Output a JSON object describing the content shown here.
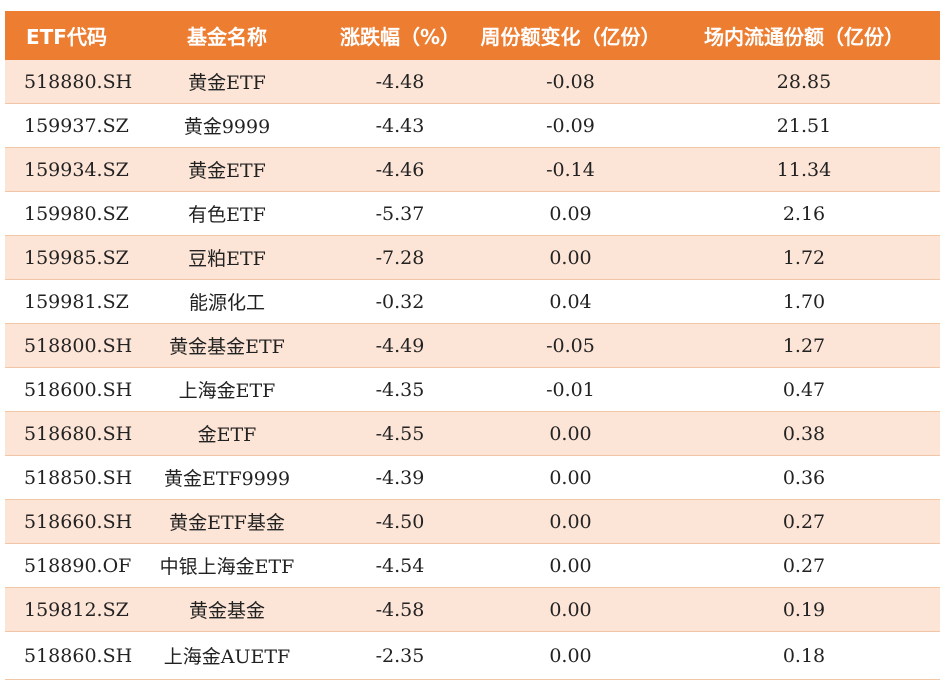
{
  "header": {
    "code": "ETF代码",
    "name": "基金名称",
    "change": "涨跌幅（%）",
    "weekly_shares": "周份额变化（亿份）",
    "float_shares": "场内流通份额（亿份）"
  },
  "rows": [
    {
      "code": "518880.SH",
      "name": "黄金ETF",
      "change": "-4.48",
      "weekly": "-0.08",
      "float": "28.85"
    },
    {
      "code": "159937.SZ",
      "name": "黄金9999",
      "change": "-4.43",
      "weekly": "-0.09",
      "float": "21.51"
    },
    {
      "code": "159934.SZ",
      "name": "黄金ETF",
      "change": "-4.46",
      "weekly": "-0.14",
      "float": "11.34"
    },
    {
      "code": "159980.SZ",
      "name": "有色ETF",
      "change": "-5.37",
      "weekly": "0.09",
      "float": "2.16"
    },
    {
      "code": "159985.SZ",
      "name": "豆粕ETF",
      "change": "-7.28",
      "weekly": "0.00",
      "float": "1.72"
    },
    {
      "code": "159981.SZ",
      "name": "能源化工",
      "change": "-0.32",
      "weekly": "0.04",
      "float": "1.70"
    },
    {
      "code": "518800.SH",
      "name": "黄金基金ETF",
      "change": "-4.49",
      "weekly": "-0.05",
      "float": "1.27"
    },
    {
      "code": "518600.SH",
      "name": "上海金ETF",
      "change": "-4.35",
      "weekly": "-0.01",
      "float": "0.47"
    },
    {
      "code": "518680.SH",
      "name": "金ETF",
      "change": "-4.55",
      "weekly": "0.00",
      "float": "0.38"
    },
    {
      "code": "518850.SH",
      "name": "黄金ETF9999",
      "change": "-4.39",
      "weekly": "0.00",
      "float": "0.36"
    },
    {
      "code": "518660.SH",
      "name": "黄金ETF基金",
      "change": "-4.50",
      "weekly": "0.00",
      "float": "0.27"
    },
    {
      "code": "518890.OF",
      "name": "中银上海金ETF",
      "change": "-4.54",
      "weekly": "0.00",
      "float": "0.27"
    },
    {
      "code": "159812.SZ",
      "name": "黄金基金",
      "change": "-4.58",
      "weekly": "0.00",
      "float": "0.19"
    },
    {
      "code": "518860.SH",
      "name": "上海金AUETF",
      "change": "-2.35",
      "weekly": "0.00",
      "float": "0.18"
    }
  ],
  "colors": {
    "header_bg": "#ed7d31",
    "header_text": "#ffffff",
    "stripe_bg": "#fce4d6",
    "border": "#f1c6a7"
  }
}
